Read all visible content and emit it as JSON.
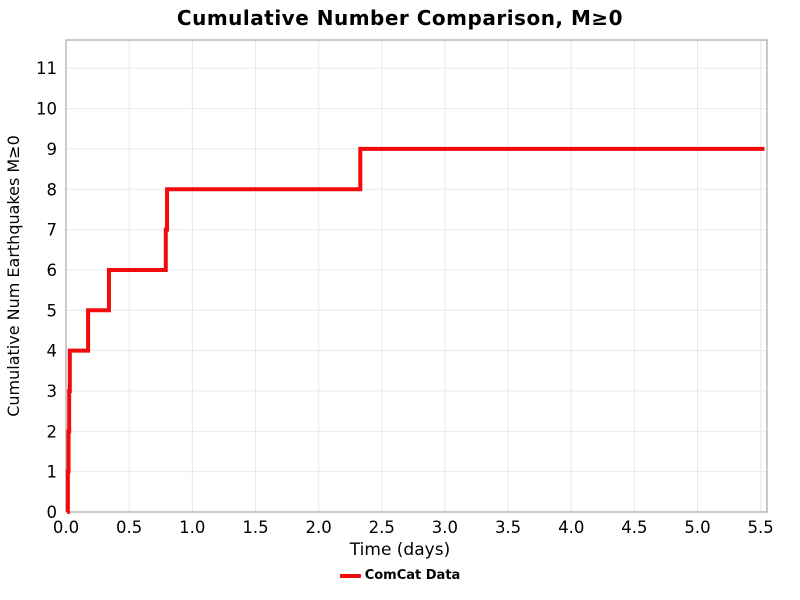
{
  "title": "Cumulative Number Comparison, M≥0",
  "axes": {
    "x_label": "Time (days)",
    "y_label": "Cumulative Num Earthquakes M≥0"
  },
  "legend": {
    "entries": [
      {
        "label": "ComCat Data",
        "color": "#f30b0b"
      }
    ]
  },
  "colors": {
    "line": "#f30b0b",
    "grid": "#e9e9e9",
    "spine": "#a6a6a6",
    "text": "#000000",
    "background": "#ffffff"
  },
  "chart_data": {
    "type": "line",
    "step": "post",
    "title": "Cumulative Number Comparison, M≥0",
    "xlabel": "Time (days)",
    "ylabel": "Cumulative Num Earthquakes M≥0",
    "xlim": [
      0,
      5.55
    ],
    "ylim": [
      0,
      11.7
    ],
    "x_ticks": [
      0.0,
      0.5,
      1.0,
      1.5,
      2.0,
      2.5,
      3.0,
      3.5,
      4.0,
      4.5,
      5.0,
      5.5
    ],
    "x_tick_labels": [
      "0.0",
      "0.5",
      "1.0",
      "1.5",
      "2.0",
      "2.5",
      "3.0",
      "3.5",
      "4.0",
      "4.5",
      "5.0",
      "5.5"
    ],
    "y_ticks": [
      0,
      1,
      2,
      3,
      4,
      5,
      6,
      7,
      8,
      9,
      10,
      11
    ],
    "y_tick_labels": [
      "0",
      "1",
      "2",
      "3",
      "4",
      "5",
      "6",
      "7",
      "8",
      "9",
      "10",
      "11"
    ],
    "grid": true,
    "legend_position": "bottom-center",
    "series": [
      {
        "name": "ComCat Data",
        "color": "#f30b0b",
        "line_width": 4,
        "x": [
          0.01,
          0.015,
          0.02,
          0.025,
          0.03,
          0.175,
          0.34,
          0.79,
          0.8,
          2.33
        ],
        "y": [
          0,
          1,
          2,
          3,
          4,
          5,
          6,
          7,
          8,
          9
        ],
        "end_x": 5.53
      }
    ]
  }
}
